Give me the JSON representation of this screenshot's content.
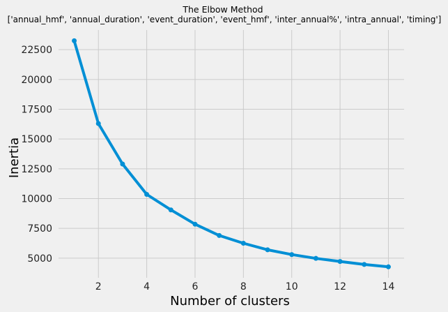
{
  "chart_data": {
    "type": "line",
    "title": "The Elbow Method",
    "subtitle": "['annual_hmf', 'annual_duration', 'event_duration', 'event_hmf', 'inter_annual%', 'intra_annual', 'timing']",
    "xlabel": "Number of clusters",
    "ylabel": "Inertia",
    "x": [
      1,
      2,
      3,
      4,
      5,
      6,
      7,
      8,
      9,
      10,
      11,
      12,
      13,
      14
    ],
    "series": [
      {
        "values": [
          23250,
          16300,
          12900,
          10350,
          9050,
          7850,
          6900,
          6250,
          5700,
          5300,
          4980,
          4720,
          4470,
          4270
        ],
        "color": "#008fd5"
      }
    ],
    "xticks": [
      2,
      4,
      6,
      8,
      10,
      12,
      14
    ],
    "yticks": [
      5000,
      7500,
      10000,
      12500,
      15000,
      17500,
      20000,
      22500
    ],
    "xlim": [
      0.35,
      14.65
    ],
    "ylim": [
      3350,
      24150
    ],
    "grid": true,
    "style": "fivethirtyeight",
    "background": "#f0f0f0",
    "grid_color": "#cbcbcb"
  }
}
